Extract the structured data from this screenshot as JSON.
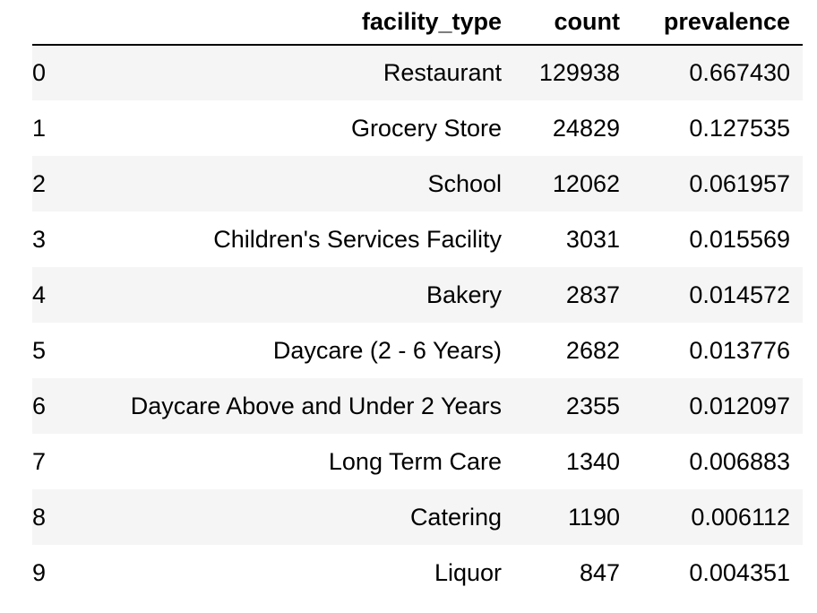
{
  "table": {
    "columns": {
      "index": "",
      "facility_type": "facility_type",
      "count": "count",
      "prevalence": "prevalence"
    },
    "rows": [
      {
        "index": "0",
        "facility_type": "Restaurant",
        "count": "129938",
        "prevalence": "0.667430"
      },
      {
        "index": "1",
        "facility_type": "Grocery Store",
        "count": "24829",
        "prevalence": "0.127535"
      },
      {
        "index": "2",
        "facility_type": "School",
        "count": "12062",
        "prevalence": "0.061957"
      },
      {
        "index": "3",
        "facility_type": "Children's Services Facility",
        "count": "3031",
        "prevalence": "0.015569"
      },
      {
        "index": "4",
        "facility_type": "Bakery",
        "count": "2837",
        "prevalence": "0.014572"
      },
      {
        "index": "5",
        "facility_type": "Daycare (2 - 6 Years)",
        "count": "2682",
        "prevalence": "0.013776"
      },
      {
        "index": "6",
        "facility_type": "Daycare Above and Under 2 Years",
        "count": "2355",
        "prevalence": "0.012097"
      },
      {
        "index": "7",
        "facility_type": "Long Term Care",
        "count": "1340",
        "prevalence": "0.006883"
      },
      {
        "index": "8",
        "facility_type": "Catering",
        "count": "1190",
        "prevalence": "0.006112"
      },
      {
        "index": "9",
        "facility_type": "Liquor",
        "count": "847",
        "prevalence": "0.004351"
      }
    ]
  },
  "colors": {
    "stripe": "#f5f5f5",
    "header_rule": "#000000",
    "text": "#000000"
  }
}
